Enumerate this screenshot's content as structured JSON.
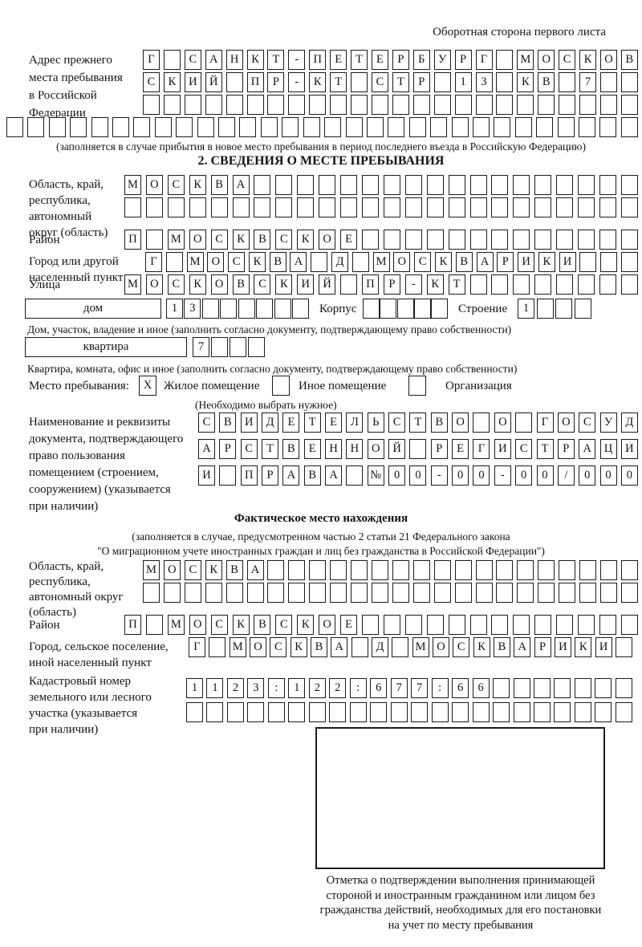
{
  "header": {
    "note": "Оборотная сторона первого листа"
  },
  "prev_address": {
    "label_lines": [
      "Адрес прежнего",
      "места пребывания",
      "в Российской",
      "Федерации"
    ],
    "row1": {
      "len": 24,
      "text": "Г САНКТ-ПЕТЕРБУРГ МОСКОВ"
    },
    "row2": {
      "len": 24,
      "text": "СКИЙ ПР-КТ СТР 13 КВ 7"
    },
    "row3": {
      "len": 24,
      "text": ""
    },
    "row4": {
      "len": 30,
      "text": ""
    },
    "note": "(заполняется в случае прибытия в новое место пребывания в период последнего въезда в Российскую Федерацию)"
  },
  "section2": {
    "title": "2. СВЕДЕНИЯ О МЕСТЕ ПРЕБЫВАНИЯ",
    "region": {
      "label_lines": [
        "Область, край,",
        "республика,",
        "автономный",
        "округ (область)"
      ],
      "row1": {
        "len": 24,
        "text": "МОСКВА"
      },
      "row2": {
        "len": 24,
        "text": ""
      }
    },
    "district": {
      "label": "Район",
      "row": {
        "len": 24,
        "text": "П МОСКВСКОЕ"
      }
    },
    "city": {
      "label_lines": [
        "Город или другой",
        "населенный пункт"
      ],
      "row": {
        "len": 24,
        "text": "Г МОСКВА Д МОСКВАРИКИ"
      }
    },
    "street": {
      "label": "Улица",
      "row": {
        "len": 24,
        "text": "МОСКОВСКИЙ ПР-КТ"
      }
    },
    "house": {
      "box_label": "дом",
      "cells": {
        "len": 8,
        "text": "13"
      },
      "korpus_label": "Корпус",
      "korpus_cells": {
        "len": 5,
        "text": ""
      },
      "stroenie_label": "Строение",
      "stroenie_cells": {
        "len": 4,
        "text": "1"
      },
      "note": "Дом, участок, владение и иное (заполнить согласно документу, подтверждающему право собственности)"
    },
    "apartment": {
      "box_label": "квартира",
      "cells": {
        "len": 4,
        "text": "7"
      },
      "note": "Квартира, комната, офис и иное (заполнить согласно документу, подтверждающему право собственности)"
    },
    "place": {
      "label": "Место пребывания:",
      "options": [
        {
          "label": "Жилое помещение",
          "mark": "X"
        },
        {
          "label": "Иное помещение",
          "mark": ""
        },
        {
          "label": "Организация",
          "mark": ""
        }
      ],
      "note": "(Необходимо выбрать нужное)"
    },
    "document": {
      "label_lines": [
        "Наименование и реквизиты",
        "документа, подтверждающего",
        "право пользования",
        "помещением (строением,",
        "сооружением) (указывается",
        "при наличии)"
      ],
      "row1": {
        "len": 21,
        "text": "СВИДЕТЕЛЬСТВО О ГОСУД"
      },
      "row2": {
        "len": 21,
        "text": "АРСТВЕННОЙ РЕГИСТРАЦИ"
      },
      "row3": {
        "len": 21,
        "text": "И ПРАВА №00-00-00/000"
      }
    }
  },
  "actual": {
    "title": "Фактическое место нахождения",
    "note_lines": [
      "(заполняется в случае, предусмотренном частью 2 статьи 21 Федерального закона",
      "\"О миграционном учете иностранных граждан и лиц без гражданства в Российской Федерации\")"
    ],
    "region": {
      "label_lines": [
        "Область, край,",
        "республика,",
        "автономный округ",
        "(область)"
      ],
      "row1": {
        "len": 24,
        "text": "МОСКВА"
      },
      "row2": {
        "len": 24,
        "text": ""
      }
    },
    "district": {
      "label": "Район",
      "row": {
        "len": 24,
        "text": "П МОСКВСКОЕ"
      }
    },
    "city": {
      "label_lines": [
        "Город, сельское поселение,",
        "иной населенный пункт"
      ],
      "row": {
        "len": 22,
        "text": "Г МОСКВА Д МОСКВАРИКИ"
      }
    },
    "cadastre": {
      "label_lines": [
        "Кадастровый номер",
        "земельного или лесного",
        "участка (указывается",
        "при наличии)"
      ],
      "row1": {
        "len": 22,
        "text": "1123:122:677:66"
      },
      "row2": {
        "len": 22,
        "text": ""
      }
    }
  },
  "stamp": {
    "note_lines": [
      "Отметка о подтверждении выполнения принимающей",
      "стороной и иностранным гражданином или лицом без",
      "гражданства действий, необходимых для его постановки",
      "на учет по месту пребывания"
    ]
  }
}
